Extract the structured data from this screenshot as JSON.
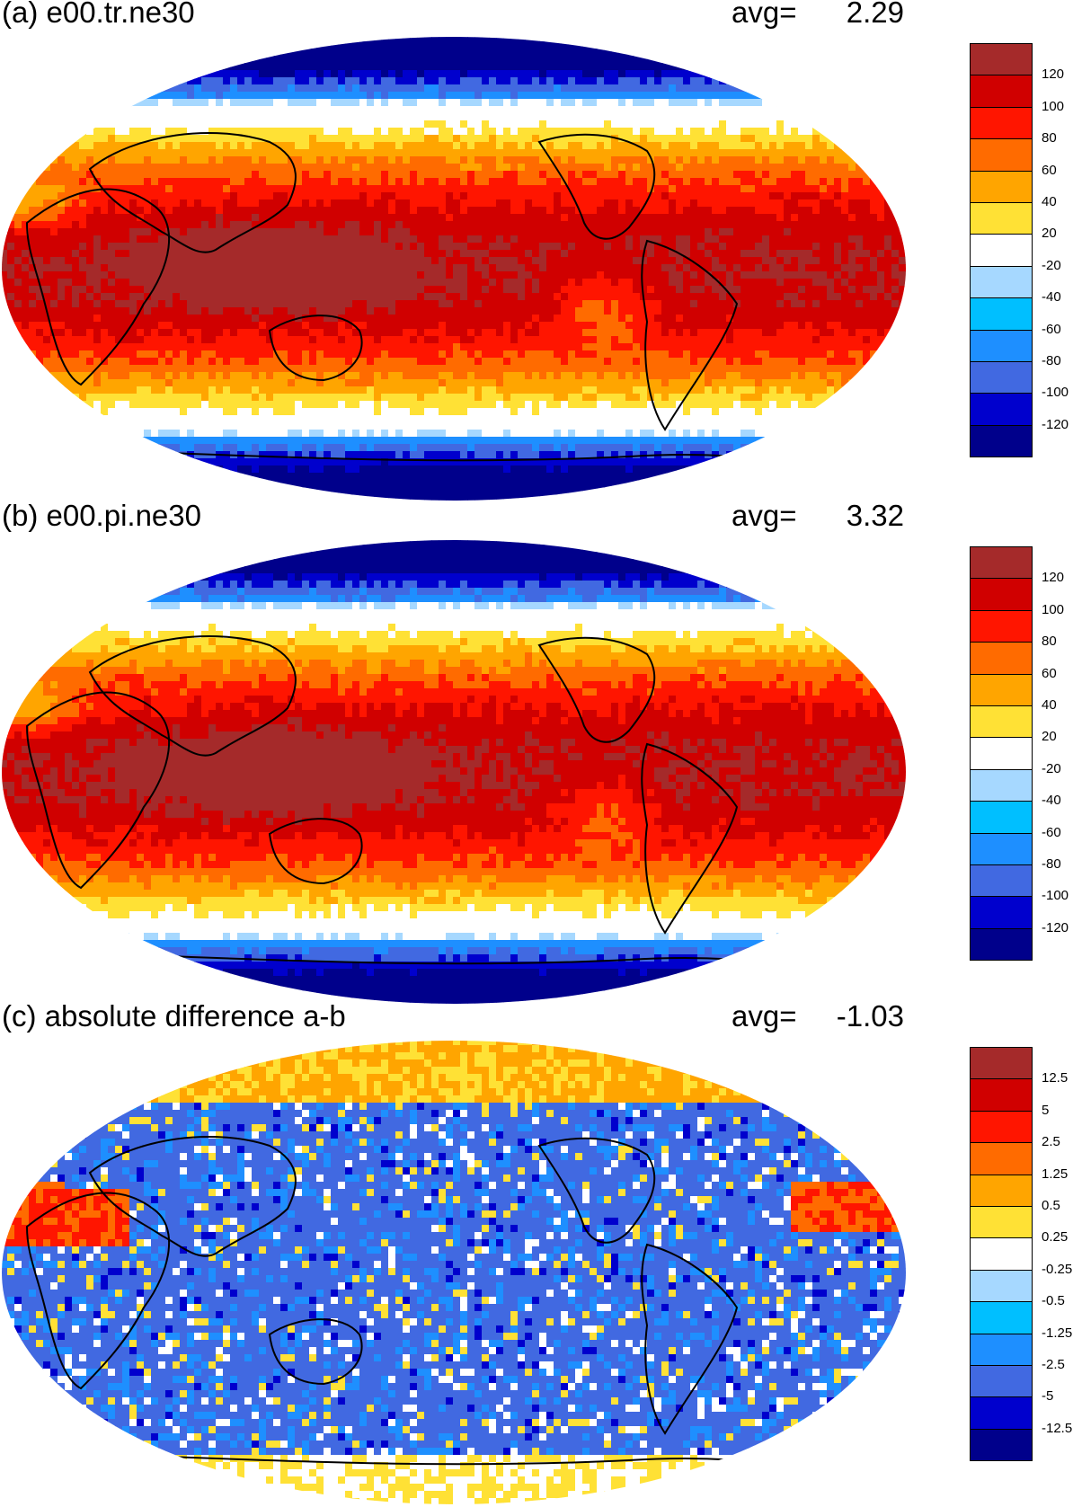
{
  "colors": [
    "#00008b",
    "#0000cd",
    "#4169e1",
    "#1e8fff",
    "#00bfff",
    "#a6d8ff",
    "#ffffff",
    "#ffe135",
    "#ffa500",
    "#ff6b00",
    "#ff1500",
    "#d00000",
    "#a52a2a"
  ],
  "panels": [
    {
      "title": "(a) e00.tr.ne30",
      "avg_label": "avg=",
      "avg_value": "2.29",
      "pattern": "field",
      "colorbar_labels": [
        "-120",
        "-100",
        "-80",
        "-60",
        "-40",
        "-20",
        "20",
        "40",
        "60",
        "80",
        "100",
        "120"
      ]
    },
    {
      "title": "(b) e00.pi.ne30",
      "avg_label": "avg=",
      "avg_value": "3.32",
      "pattern": "field",
      "colorbar_labels": [
        "-120",
        "-100",
        "-80",
        "-60",
        "-40",
        "-20",
        "20",
        "40",
        "60",
        "80",
        "100",
        "120"
      ]
    },
    {
      "title": "(c) absolute difference a-b",
      "avg_label": "avg=",
      "avg_value": "-1.03",
      "pattern": "difference",
      "colorbar_labels": [
        "-12.5",
        "-5",
        "-2.5",
        "-1.25",
        "-0.5",
        "-0.25",
        "0.25",
        "0.5",
        "1.25",
        "2.5",
        "5",
        "12.5"
      ]
    }
  ]
}
